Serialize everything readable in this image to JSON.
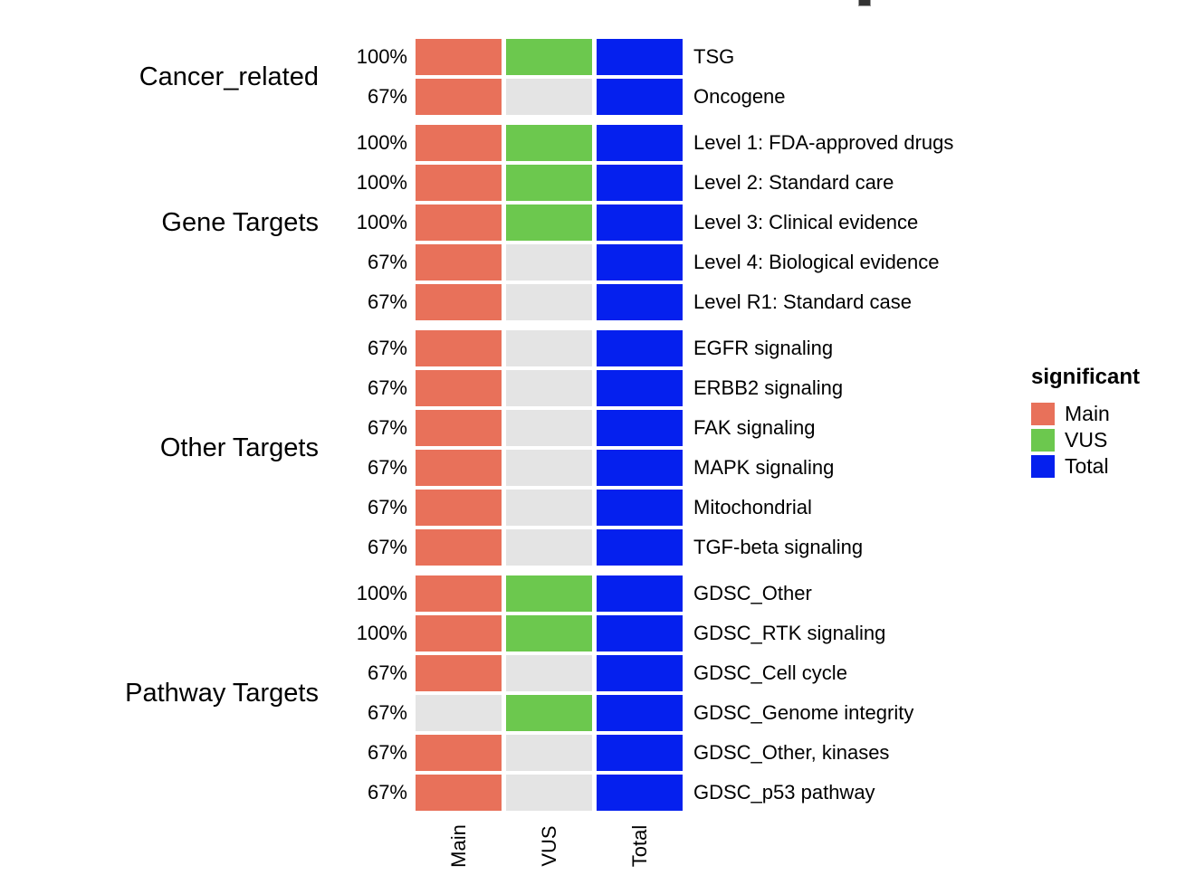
{
  "colors": {
    "main": "#E8715A",
    "vus": "#6CC84E",
    "total": "#0520EE",
    "inactive": "#E4E4E4",
    "text": "#000000",
    "title_fragment": "#333333"
  },
  "chart_data": {
    "type": "heatmap",
    "title": "",
    "columns": [
      "Main",
      "VUS",
      "Total"
    ],
    "x_axis_labels": [
      "Main",
      "VUS",
      "Total"
    ],
    "legend": {
      "title": "significant",
      "items": [
        "Main",
        "VUS",
        "Total"
      ]
    },
    "value_encoding": "cells give significance per column: 1 = significant (colored Main/VUS/Total), 0 = not significant (gray)",
    "groups": [
      {
        "label": "Cancer_related",
        "rows": [
          {
            "percent": "100%",
            "label": "TSG",
            "cells": [
              1,
              1,
              1
            ]
          },
          {
            "percent": "67%",
            "label": "Oncogene",
            "cells": [
              1,
              0,
              1
            ]
          }
        ]
      },
      {
        "label": "Gene Targets",
        "rows": [
          {
            "percent": "100%",
            "label": "Level 1: FDA-approved drugs",
            "cells": [
              1,
              1,
              1
            ]
          },
          {
            "percent": "100%",
            "label": "Level 2: Standard care",
            "cells": [
              1,
              1,
              1
            ]
          },
          {
            "percent": "100%",
            "label": "Level 3: Clinical evidence",
            "cells": [
              1,
              1,
              1
            ]
          },
          {
            "percent": "67%",
            "label": "Level 4: Biological evidence",
            "cells": [
              1,
              0,
              1
            ]
          },
          {
            "percent": "67%",
            "label": "Level R1: Standard case",
            "cells": [
              1,
              0,
              1
            ]
          }
        ]
      },
      {
        "label": "Other Targets",
        "rows": [
          {
            "percent": "67%",
            "label": "EGFR signaling",
            "cells": [
              1,
              0,
              1
            ]
          },
          {
            "percent": "67%",
            "label": "ERBB2 signaling",
            "cells": [
              1,
              0,
              1
            ]
          },
          {
            "percent": "67%",
            "label": "FAK signaling",
            "cells": [
              1,
              0,
              1
            ]
          },
          {
            "percent": "67%",
            "label": "MAPK signaling",
            "cells": [
              1,
              0,
              1
            ]
          },
          {
            "percent": "67%",
            "label": "Mitochondrial",
            "cells": [
              1,
              0,
              1
            ]
          },
          {
            "percent": "67%",
            "label": "TGF-beta signaling",
            "cells": [
              1,
              0,
              1
            ]
          }
        ]
      },
      {
        "label": "Pathway Targets",
        "rows": [
          {
            "percent": "100%",
            "label": "GDSC_Other",
            "cells": [
              1,
              1,
              1
            ]
          },
          {
            "percent": "100%",
            "label": "GDSC_RTK signaling",
            "cells": [
              1,
              1,
              1
            ]
          },
          {
            "percent": "67%",
            "label": "GDSC_Cell cycle",
            "cells": [
              1,
              0,
              1
            ]
          },
          {
            "percent": "67%",
            "label": "GDSC_Genome integrity",
            "cells": [
              0,
              1,
              1
            ]
          },
          {
            "percent": "67%",
            "label": "GDSC_Other, kinases",
            "cells": [
              1,
              0,
              1
            ]
          },
          {
            "percent": "67%",
            "label": "GDSC_p53 pathway",
            "cells": [
              1,
              0,
              1
            ]
          }
        ]
      }
    ]
  }
}
